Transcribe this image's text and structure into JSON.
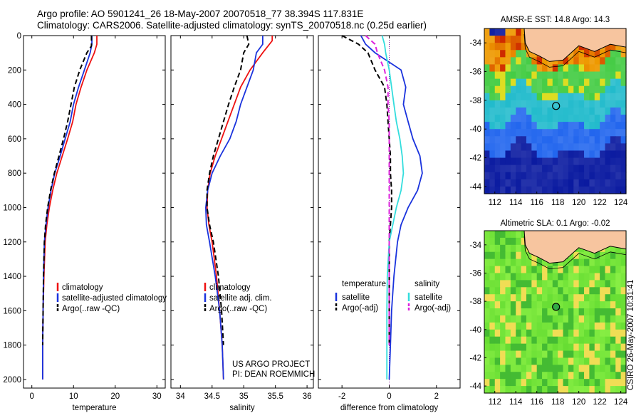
{
  "header": {
    "line1": "Argo profile: AO 5901241_26 18-May-2007 20070518_77 38.394S 117.831E",
    "line2": "Climatology: CARS2006. Satellite-adjusted climatology: synTS_20070518.nc (0.25d earlier)"
  },
  "side_stamp": "CSIRO 26-May-2007 10:31:41",
  "project_note": [
    "US ARGO PROJECT",
    "PI: DEAN ROEMMICH"
  ],
  "colors": {
    "climatology": "#ee1111",
    "satellite": "#1a33dd",
    "argo": "#000000",
    "satellite_salinity": "#33dddd",
    "argo_adj_salinity": "#dd22dd",
    "land": "#f7c59f"
  },
  "chart_data": [
    {
      "type": "line",
      "id": "temperature",
      "xlabel": "temperature",
      "ylabel": "",
      "xlim": [
        -2,
        32
      ],
      "ylim": [
        2050,
        0
      ],
      "xticks": [
        0,
        10,
        20,
        30
      ],
      "yticks": [
        0,
        200,
        400,
        600,
        800,
        1000,
        1200,
        1400,
        1600,
        1800,
        2000
      ],
      "legend": [
        "climatology",
        "satellite-adjusted climatology",
        "Argo(..raw -QC)"
      ],
      "series": [
        {
          "name": "climatology",
          "style": "solid",
          "color": "climatology",
          "x": [
            15.6,
            15.6,
            15.0,
            13.2,
            11.8,
            10.6,
            9.8,
            8.6,
            7.3,
            6.0,
            5.0,
            4.2,
            3.6,
            3.2,
            2.9,
            2.7,
            2.6,
            2.6
          ],
          "y": [
            0,
            50,
            100,
            200,
            300,
            400,
            500,
            600,
            700,
            800,
            900,
            1000,
            1100,
            1200,
            1400,
            1600,
            1800,
            2000
          ]
        },
        {
          "name": "satellite-adjusted climatology",
          "style": "solid",
          "color": "satellite",
          "x": [
            14.4,
            14.4,
            14.0,
            12.6,
            11.2,
            10.0,
            9.2,
            8.0,
            6.8,
            5.5,
            4.6,
            3.9,
            3.4,
            3.0,
            2.8,
            2.7,
            2.6,
            2.6
          ],
          "y": [
            0,
            50,
            100,
            200,
            300,
            400,
            500,
            600,
            700,
            800,
            900,
            1000,
            1100,
            1200,
            1400,
            1600,
            1800,
            2000
          ]
        },
        {
          "name": "Argo(..raw -QC)",
          "style": "dashed",
          "color": "argo",
          "x": [
            14.3,
            14.3,
            13.2,
            11.5,
            10.2,
            9.4,
            8.6,
            7.6,
            6.5,
            5.4,
            4.5,
            3.8,
            3.3,
            3.0,
            2.8,
            2.7,
            2.6
          ],
          "y": [
            0,
            60,
            100,
            200,
            300,
            400,
            500,
            600,
            700,
            800,
            900,
            1000,
            1100,
            1200,
            1400,
            1600,
            1800
          ]
        }
      ]
    },
    {
      "type": "line",
      "id": "salinity",
      "xlabel": "salinity",
      "ylabel": "",
      "xlim": [
        33.85,
        36.1
      ],
      "ylim": [
        2050,
        0
      ],
      "xticks": [
        34,
        34.5,
        35,
        35.5,
        36
      ],
      "xticklabels": [
        "34",
        "34.5",
        "35",
        "35.5",
        "36"
      ],
      "yticks": [
        0,
        200,
        400,
        600,
        800,
        1000,
        1200,
        1400,
        1600,
        1800,
        2000
      ],
      "legend": [
        "climatology",
        "satellite adj. clim.",
        "Argo(..raw -QC)"
      ],
      "series": [
        {
          "name": "climatology",
          "style": "solid",
          "color": "climatology",
          "x": [
            35.45,
            35.45,
            35.3,
            35.1,
            34.95,
            34.85,
            34.75,
            34.65,
            34.55,
            34.47,
            34.43,
            34.42,
            34.45,
            34.5,
            34.57,
            34.62,
            34.66,
            34.68
          ],
          "y": [
            0,
            30,
            100,
            200,
            300,
            400,
            500,
            600,
            700,
            800,
            900,
            1000,
            1100,
            1200,
            1400,
            1600,
            1800,
            2000
          ]
        },
        {
          "name": "satellite adj. clim.",
          "style": "solid",
          "color": "satellite",
          "x": [
            35.3,
            35.3,
            35.2,
            35.15,
            35.05,
            34.95,
            34.88,
            34.78,
            34.63,
            34.5,
            34.43,
            34.4,
            34.41,
            34.46,
            34.55,
            34.62,
            34.66,
            34.68
          ],
          "y": [
            0,
            50,
            100,
            200,
            300,
            400,
            500,
            600,
            700,
            800,
            900,
            1000,
            1100,
            1200,
            1400,
            1600,
            1800,
            2000
          ]
        },
        {
          "name": "Argo(..raw -QC)",
          "style": "dashed",
          "color": "argo",
          "x": [
            35.05,
            35.08,
            35.0,
            34.95,
            34.85,
            34.76,
            34.68,
            34.6,
            34.52,
            34.46,
            34.42,
            34.42,
            34.46,
            34.52,
            34.6,
            34.65,
            34.68
          ],
          "y": [
            0,
            50,
            100,
            200,
            300,
            400,
            500,
            600,
            700,
            800,
            900,
            1000,
            1100,
            1200,
            1400,
            1600,
            1800
          ]
        }
      ]
    },
    {
      "type": "line",
      "id": "difference",
      "xlabel": "difference from climatology",
      "ylabel": "",
      "xlim": [
        -3,
        3
      ],
      "ylim": [
        2050,
        0
      ],
      "xticks": [
        -2,
        0,
        2
      ],
      "yticks": [
        0,
        200,
        400,
        600,
        800,
        1000,
        1200,
        1400,
        1600,
        1800,
        2000
      ],
      "legend_groups": [
        {
          "title": "temperature",
          "entries": [
            "satellite",
            "Argo(-adj)"
          ]
        },
        {
          "title": "salinity",
          "entries": [
            "satellite",
            "Argo(-adj)"
          ]
        }
      ],
      "series": [
        {
          "name": "temperature satellite",
          "style": "solid",
          "color": "satellite",
          "x": [
            -1.2,
            -1.0,
            -0.6,
            0.5,
            0.7,
            0.6,
            0.8,
            1.0,
            1.3,
            1.4,
            1.2,
            0.8,
            0.5,
            0.35,
            0.2,
            0.1,
            0.05,
            0.0
          ],
          "y": [
            0,
            50,
            100,
            200,
            300,
            400,
            500,
            600,
            700,
            800,
            900,
            1000,
            1100,
            1200,
            1400,
            1600,
            1800,
            2000
          ]
        },
        {
          "name": "temperature Argo(-adj)",
          "style": "dashed",
          "color": "argo",
          "x": [
            -2.0,
            -1.3,
            -0.9,
            -0.6,
            -0.2,
            -0.1,
            -0.05,
            0.0,
            0.05,
            0.05,
            0.1,
            0.1,
            0.05,
            0.0,
            0.0,
            0.0,
            0.0
          ],
          "y": [
            0,
            50,
            100,
            200,
            300,
            400,
            500,
            600,
            700,
            800,
            900,
            1000,
            1100,
            1200,
            1400,
            1600,
            1800
          ]
        },
        {
          "name": "salinity satellite",
          "style": "solid",
          "color": "satellite_salinity",
          "x": [
            -0.3,
            -0.2,
            -0.15,
            0.0,
            0.1,
            0.2,
            0.3,
            0.45,
            0.55,
            0.6,
            0.5,
            0.3,
            0.15,
            0.0,
            -0.08,
            -0.1,
            -0.1,
            -0.1
          ],
          "y": [
            0,
            50,
            100,
            200,
            300,
            400,
            500,
            600,
            700,
            800,
            900,
            1000,
            1100,
            1200,
            1400,
            1600,
            1800,
            2000
          ]
        },
        {
          "name": "salinity Argo(-adj)",
          "style": "dashed",
          "color": "argo_adj_salinity",
          "x": [
            -1.0,
            -0.6,
            -0.5,
            -0.2,
            -0.05,
            -0.05,
            0.0,
            0.0,
            0.0,
            0.0,
            0.0,
            0.0,
            0.0,
            0.0,
            0.0,
            0.0,
            0.0
          ],
          "y": [
            0,
            50,
            100,
            200,
            300,
            400,
            500,
            600,
            700,
            800,
            900,
            1000,
            1100,
            1200,
            1400,
            1600,
            1800
          ]
        }
      ]
    },
    {
      "type": "heatmap",
      "id": "sst_map",
      "title": "AMSR-E SST: 14.8 Argo: 14.3",
      "xlim": [
        111,
        124.5
      ],
      "ylim": [
        -44.5,
        -33
      ],
      "xticks": [
        112,
        114,
        116,
        118,
        120,
        122,
        124
      ],
      "yticks": [
        -34,
        -36,
        -38,
        -40,
        -42,
        -44
      ],
      "marker": {
        "lon": 117.831,
        "lat": -38.394
      },
      "bands": [
        {
          "lat_from": -33,
          "lat_to": -35.5,
          "color": "#ee9900"
        },
        {
          "lat_from": -35.5,
          "lat_to": -37.5,
          "color": "#44cc44"
        },
        {
          "lat_from": -37.5,
          "lat_to": -39.5,
          "color": "#22bbcc"
        },
        {
          "lat_from": -39.5,
          "lat_to": -41.5,
          "color": "#2266ee"
        },
        {
          "lat_from": -41.5,
          "lat_to": -44.5,
          "color": "#0a1aa0"
        }
      ]
    },
    {
      "type": "heatmap",
      "id": "sla_map",
      "title": "Altimetric SLA: 0.1 Argo: -0.02",
      "xlim": [
        111,
        124.5
      ],
      "ylim": [
        -44.5,
        -33
      ],
      "xticks": [
        112,
        114,
        116,
        118,
        120,
        122,
        124
      ],
      "yticks": [
        -34,
        -36,
        -38,
        -40,
        -42,
        -44
      ],
      "marker": {
        "lon": 117.831,
        "lat": -38.394
      },
      "base_color": "#88ee44"
    }
  ]
}
